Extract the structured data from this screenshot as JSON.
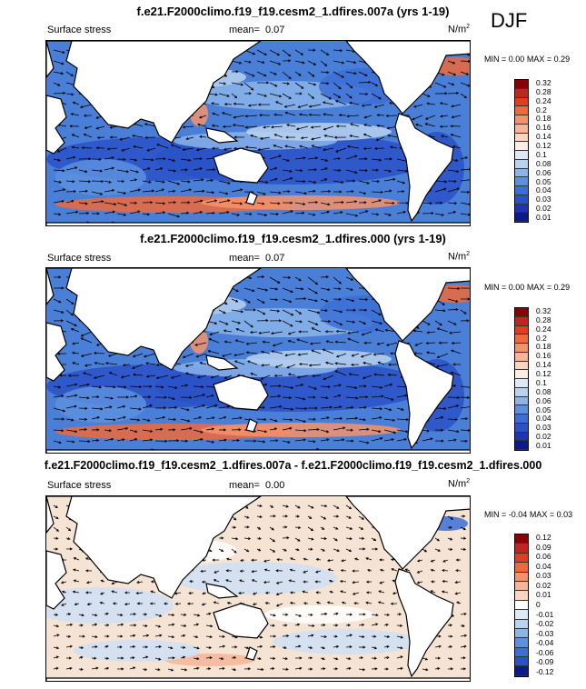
{
  "season": "DJF",
  "panels": [
    {
      "title": "f.e21.F2000climo.f19_f19.cesm2_1.dfires.007a (yrs 1-19)",
      "variable": "Surface stress",
      "mean_label": "mean=",
      "mean": "0.07",
      "units": "N/m",
      "units_sup": "2",
      "min_label": "MIN =",
      "min": "0.00",
      "max_label": "MAX =",
      "max": "0.29",
      "colorbar": [
        "0.32",
        "0.28",
        "0.24",
        "0.2",
        "0.18",
        "0.16",
        "0.14",
        "0.12",
        "0.1",
        "0.08",
        "0.06",
        "0.05",
        "0.04",
        "0.03",
        "0.02",
        "0.01"
      ],
      "colors": [
        "#8b0000",
        "#c0261e",
        "#e03d23",
        "#ee6a3c",
        "#f6926a",
        "#f9b496",
        "#fdd5bf",
        "#fbeee4",
        "#dde9f6",
        "#b8d2f0",
        "#8ab4ea",
        "#5c90e0",
        "#3b6fd6",
        "#2a52c8",
        "#1b36b0",
        "#0b1a8a"
      ]
    },
    {
      "title": "f.e21.F2000climo.f19_f19.cesm2_1.dfires.000 (yrs 1-19)",
      "variable": "Surface stress",
      "mean_label": "mean=",
      "mean": "0.07",
      "units": "N/m",
      "units_sup": "2",
      "min_label": "MIN =",
      "min": "0.00",
      "max_label": "MAX =",
      "max": "0.29",
      "colorbar": [
        "0.32",
        "0.28",
        "0.24",
        "0.2",
        "0.18",
        "0.16",
        "0.14",
        "0.12",
        "0.1",
        "0.08",
        "0.06",
        "0.05",
        "0.04",
        "0.03",
        "0.02",
        "0.01"
      ],
      "colors": [
        "#8b0000",
        "#c0261e",
        "#e03d23",
        "#ee6a3c",
        "#f6926a",
        "#f9b496",
        "#fdd5bf",
        "#fbeee4",
        "#dde9f6",
        "#b8d2f0",
        "#8ab4ea",
        "#5c90e0",
        "#3b6fd6",
        "#2a52c8",
        "#1b36b0",
        "#0b1a8a"
      ]
    },
    {
      "title": "f.e21.F2000climo.f19_f19.cesm2_1.dfires.007a - f.e21.F2000climo.f19_f19.cesm2_1.dfires.000",
      "variable": "Surface stress",
      "mean_label": "mean=",
      "mean": "0.00",
      "units": "N/m",
      "units_sup": "2",
      "min_label": "MIN =",
      "min": "-0.04",
      "max_label": "MAX =",
      "max": "0.03",
      "colorbar": [
        "0.12",
        "0.09",
        "0.06",
        "0.04",
        "0.03",
        "0.02",
        "0.01",
        "0",
        "-0.01",
        "-0.02",
        "-0.03",
        "-0.04",
        "-0.06",
        "-0.09",
        "-0.12"
      ],
      "colors": [
        "#8b0000",
        "#c0261e",
        "#e03d23",
        "#ee6a3c",
        "#f6926a",
        "#f9b496",
        "#fdd5bf",
        "#ffffff",
        "#dde9f6",
        "#b8d2f0",
        "#8ab4ea",
        "#5c90e0",
        "#3b6fd6",
        "#2a52c8",
        "#0b1a8a"
      ]
    }
  ]
}
